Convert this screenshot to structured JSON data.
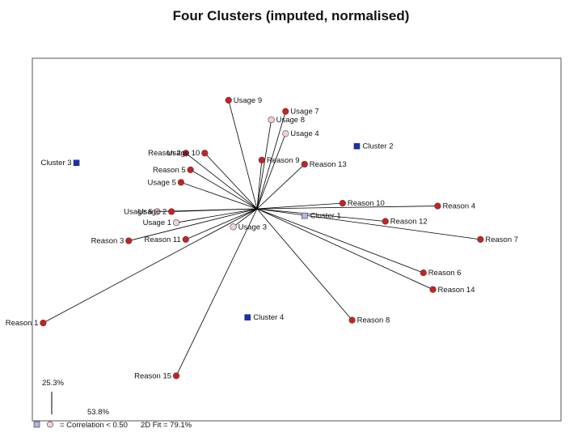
{
  "chart_data": {
    "type": "scatter",
    "title": "Four Clusters (imputed, normalised)",
    "origin": [
      0,
      0
    ],
    "points": [
      {
        "label": "Usage 9",
        "x": -0.06,
        "y": 0.78,
        "kind": "usage",
        "strong": true
      },
      {
        "label": "Usage 7",
        "x": 0.06,
        "y": 0.7,
        "kind": "usage",
        "strong": true
      },
      {
        "label": "Usage 8",
        "x": 0.03,
        "y": 0.64,
        "kind": "usage",
        "strong": false
      },
      {
        "label": "Usage 4",
        "x": 0.06,
        "y": 0.54,
        "kind": "usage",
        "strong": false
      },
      {
        "label": "Usage 10",
        "x": -0.11,
        "y": 0.4,
        "kind": "usage",
        "strong": true
      },
      {
        "label": "Reason 2",
        "x": -0.15,
        "y": 0.4,
        "kind": "reason",
        "strong": true
      },
      {
        "label": "Reason 9",
        "x": 0.01,
        "y": 0.35,
        "kind": "reason",
        "strong": true
      },
      {
        "label": "Reason 13",
        "x": 0.1,
        "y": 0.32,
        "kind": "reason",
        "strong": true
      },
      {
        "label": "Reason 5",
        "x": -0.14,
        "y": 0.28,
        "kind": "reason",
        "strong": true
      },
      {
        "label": "Usage 5",
        "x": -0.16,
        "y": 0.19,
        "kind": "usage",
        "strong": true
      },
      {
        "label": "Usage 6",
        "x": -0.21,
        "y": -0.02,
        "kind": "usage",
        "strong": false
      },
      {
        "label": "Usage 2",
        "x": -0.18,
        "y": -0.02,
        "kind": "usage",
        "strong": true
      },
      {
        "label": "Usage 1",
        "x": -0.17,
        "y": -0.1,
        "kind": "usage",
        "strong": false
      },
      {
        "label": "Usage 3",
        "x": -0.05,
        "y": -0.13,
        "kind": "usage",
        "strong": false
      },
      {
        "label": "Reason 11",
        "x": -0.15,
        "y": -0.22,
        "kind": "reason",
        "strong": true
      },
      {
        "label": "Reason 3",
        "x": -0.27,
        "y": -0.23,
        "kind": "reason",
        "strong": true
      },
      {
        "label": "Reason 10",
        "x": 0.18,
        "y": 0.04,
        "kind": "reason",
        "strong": true
      },
      {
        "label": "Reason 4",
        "x": 0.38,
        "y": 0.02,
        "kind": "reason",
        "strong": true
      },
      {
        "label": "Reason 12",
        "x": 0.27,
        "y": -0.09,
        "kind": "reason",
        "strong": true
      },
      {
        "label": "Reason 7",
        "x": 0.47,
        "y": -0.22,
        "kind": "reason",
        "strong": true
      },
      {
        "label": "Reason 6",
        "x": 0.35,
        "y": -0.46,
        "kind": "reason",
        "strong": true
      },
      {
        "label": "Reason 14",
        "x": 0.37,
        "y": -0.58,
        "kind": "reason",
        "strong": true
      },
      {
        "label": "Reason 8",
        "x": 0.2,
        "y": -0.8,
        "kind": "reason",
        "strong": true
      },
      {
        "label": "Reason 1",
        "x": -0.45,
        "y": -0.82,
        "kind": "reason",
        "strong": true
      },
      {
        "label": "Reason 15",
        "x": -0.17,
        "y": -1.2,
        "kind": "reason",
        "strong": true
      }
    ],
    "clusters": [
      {
        "label": "Cluster 1",
        "x": 0.1,
        "y": -0.05,
        "kind": "cluster",
        "strong": false
      },
      {
        "label": "Cluster 2",
        "x": 0.21,
        "y": 0.45,
        "kind": "cluster",
        "strong": true
      },
      {
        "label": "Cluster 3",
        "x": -0.38,
        "y": 0.33,
        "kind": "cluster",
        "strong": true
      },
      {
        "label": "Cluster 4",
        "x": -0.02,
        "y": -0.78,
        "kind": "cluster",
        "strong": true
      }
    ],
    "axis_x_fit": "53.8%",
    "axis_y_fit": "25.3%",
    "legend_text": "= Correlation < 0.50",
    "fit_text": "2D Fit = 79.1%",
    "colors": {
      "strong_point": "#cc1f1f",
      "weak_point": "#f2d2d2",
      "cluster": "#1a2fb8",
      "weak_cluster": "#aeb6e6",
      "line": "#000000"
    }
  }
}
